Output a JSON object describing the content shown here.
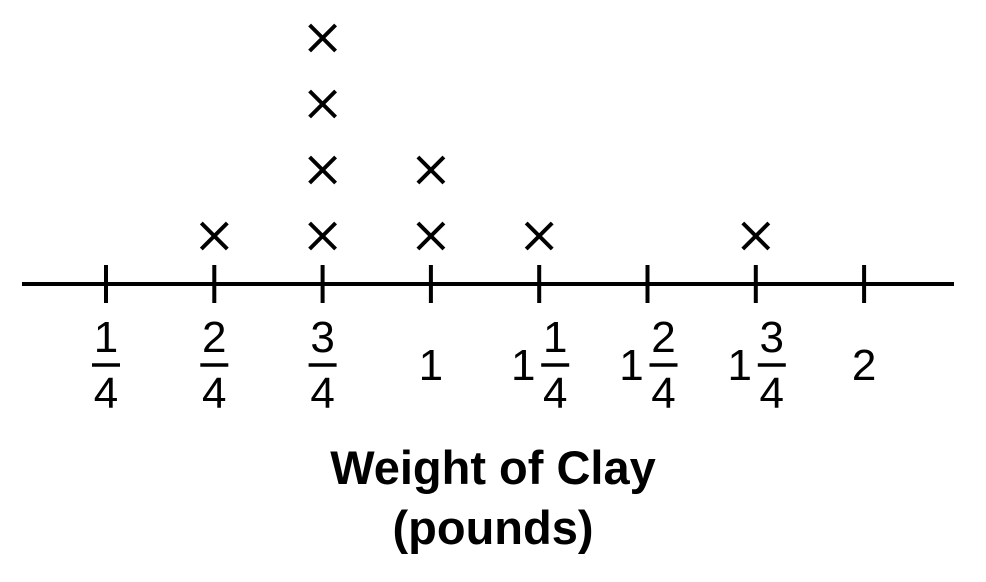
{
  "chart_data": {
    "type": "scatter",
    "subtype": "line-plot",
    "title": "",
    "xlabel_lines": [
      "Weight of Clay",
      "(pounds)"
    ],
    "ylabel": "",
    "marker": "×",
    "grid": false,
    "legend": "none",
    "xlim": [
      0.0,
      2.2
    ],
    "ticks": [
      {
        "value": 0.25,
        "whole": "",
        "num": "1",
        "den": "4"
      },
      {
        "value": 0.5,
        "whole": "",
        "num": "2",
        "den": "4"
      },
      {
        "value": 0.75,
        "whole": "",
        "num": "3",
        "den": "4"
      },
      {
        "value": 1.0,
        "whole": "1",
        "num": "",
        "den": ""
      },
      {
        "value": 1.25,
        "whole": "1",
        "num": "1",
        "den": "4"
      },
      {
        "value": 1.5,
        "whole": "1",
        "num": "2",
        "den": "4"
      },
      {
        "value": 1.75,
        "whole": "1",
        "num": "3",
        "den": "4"
      },
      {
        "value": 2.0,
        "whole": "2",
        "num": "",
        "den": ""
      }
    ],
    "points": [
      {
        "x": 0.5,
        "count": 1
      },
      {
        "x": 0.75,
        "count": 4
      },
      {
        "x": 1.0,
        "count": 2
      },
      {
        "x": 1.25,
        "count": 1
      },
      {
        "x": 1.75,
        "count": 1
      }
    ],
    "color": "#000000"
  }
}
